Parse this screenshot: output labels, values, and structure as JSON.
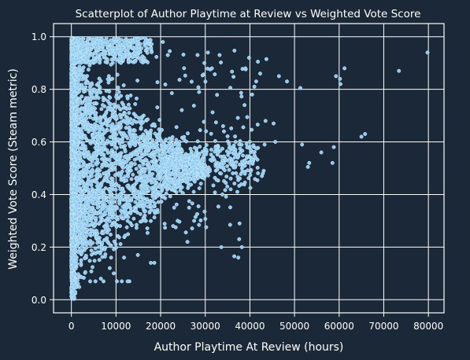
{
  "chart_data": {
    "type": "scatter",
    "title": "Scatterplot of Author Playtime at Review vs Weighted Vote Score",
    "xlabel": "Author Playtime At Review (hours)",
    "ylabel": "Weighted Vote Score (Steam metric)",
    "xlim": [
      -4000,
      83500
    ],
    "ylim": [
      -0.05,
      1.05
    ],
    "x_ticks": [
      0,
      10000,
      20000,
      30000,
      40000,
      50000,
      60000,
      70000,
      80000
    ],
    "x_tick_labels": [
      "0",
      "10000",
      "20000",
      "30000",
      "40000",
      "50000",
      "60000",
      "70000",
      "80000"
    ],
    "y_ticks": [
      0.0,
      0.2,
      0.4,
      0.6,
      0.8,
      1.0
    ],
    "y_tick_labels": [
      "0.0",
      "0.2",
      "0.4",
      "0.6",
      "0.8",
      "1.0"
    ],
    "grid": true,
    "legend": "none",
    "colors": {
      "background": "#1b2838",
      "point": "#8ecbf0",
      "point_edge": "#d8eefc",
      "grid": "#ffffff",
      "text": "#ffffff"
    },
    "outliers": [
      [
        79800,
        0.94
      ],
      [
        73400,
        0.87
      ],
      [
        65800,
        0.63
      ],
      [
        65000,
        0.62
      ],
      [
        61200,
        0.88
      ],
      [
        60200,
        0.84
      ],
      [
        60300,
        0.82
      ],
      [
        59300,
        0.85
      ],
      [
        58800,
        0.58
      ],
      [
        58500,
        0.52
      ],
      [
        56000,
        0.56
      ],
      [
        53300,
        0.52
      ],
      [
        53000,
        0.505
      ],
      [
        51700,
        0.59
      ],
      [
        51300,
        0.805
      ],
      [
        48300,
        0.83
      ],
      [
        46500,
        0.85
      ],
      [
        45700,
        0.6
      ],
      [
        45300,
        0.67
      ],
      [
        43700,
        0.915
      ],
      [
        43500,
        0.68
      ],
      [
        43300,
        0.59
      ],
      [
        43100,
        0.49
      ],
      [
        42900,
        0.48
      ],
      [
        42700,
        0.47
      ],
      [
        42300,
        0.86
      ],
      [
        41800,
        0.905
      ],
      [
        41400,
        0.83
      ],
      [
        41000,
        0.81
      ],
      [
        40500,
        0.78
      ],
      [
        40200,
        0.57
      ],
      [
        39800,
        0.92
      ],
      [
        39000,
        0.88
      ],
      [
        38800,
        0.74
      ],
      [
        38200,
        0.2
      ],
      [
        37600,
        0.23
      ],
      [
        37400,
        0.16
      ],
      [
        36500,
        0.165
      ],
      [
        36800,
        0.6
      ],
      [
        35700,
        0.42
      ],
      [
        33600,
        0.2
      ],
      [
        34000,
        0.66
      ],
      [
        34200,
        0.64
      ],
      [
        33200,
        0.93
      ],
      [
        31500,
        0.88
      ],
      [
        30600,
        0.94
      ],
      [
        29800,
        0.9
      ],
      [
        27500,
        0.3
      ],
      [
        26000,
        0.22
      ],
      [
        23800,
        0.3
      ],
      [
        22800,
        0.28
      ],
      [
        21600,
        0.93
      ],
      [
        20500,
        0.98
      ],
      [
        18600,
        0.14
      ],
      [
        17800,
        0.14
      ],
      [
        16500,
        0.3
      ],
      [
        14900,
        0.17
      ],
      [
        13000,
        0.07
      ],
      [
        12600,
        0.07
      ],
      [
        11300,
        0.07
      ],
      [
        10200,
        0.07
      ],
      [
        11800,
        0.16
      ],
      [
        10900,
        0.28
      ],
      [
        9500,
        0.1
      ],
      [
        8900,
        0.16
      ],
      [
        8600,
        0.12
      ],
      [
        7200,
        0.07
      ],
      [
        6600,
        0.08
      ],
      [
        5400,
        0.07
      ],
      [
        4200,
        0.07
      ]
    ]
  }
}
